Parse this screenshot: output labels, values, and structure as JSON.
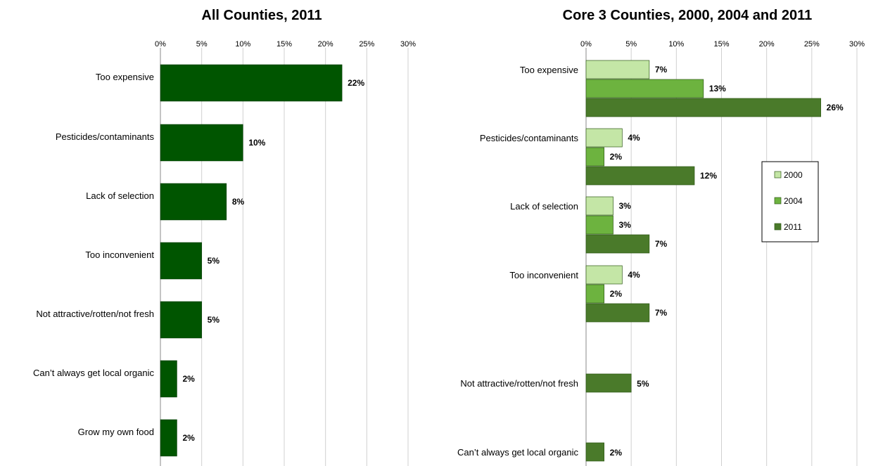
{
  "chart_data": [
    {
      "type": "bar",
      "orientation": "horizontal",
      "title": "All Counties, 2011",
      "xlabel": "",
      "ylabel": "",
      "xlim": [
        0,
        30
      ],
      "ticks": [
        "0%",
        "5%",
        "10%",
        "15%",
        "20%",
        "25%",
        "30%"
      ],
      "grid": true,
      "categories": [
        "Too expensive",
        "Pesticides/contaminants",
        "Lack of selection",
        "Too inconvenient",
        "Not attractive/rotten/not fresh",
        "Can’t always get local organic",
        "Grow my own food"
      ],
      "series": [
        {
          "color": "#005500",
          "values": [
            22,
            10,
            8,
            5,
            5,
            2,
            2
          ],
          "labels": [
            "22%",
            "10%",
            "8%",
            "5%",
            "5%",
            "2%",
            "2%"
          ]
        }
      ]
    },
    {
      "type": "bar",
      "orientation": "horizontal",
      "title": "Core 3 Counties, 2000, 2004 and 2011",
      "xlabel": "",
      "ylabel": "",
      "xlim": [
        0,
        30
      ],
      "ticks": [
        "0%",
        "5%",
        "10%",
        "15%",
        "20%",
        "25%",
        "30%"
      ],
      "grid": true,
      "legend_position": "right",
      "categories": [
        "Too expensive",
        "Pesticides/contaminants",
        "Lack of selection",
        "Too inconvenient",
        "Not attractive/rotten/not fresh",
        "Can’t always get local organic"
      ],
      "series": [
        {
          "name": "2000",
          "color": "#c4e6a6",
          "values": [
            7,
            4,
            3,
            4,
            null,
            null
          ],
          "labels": [
            "7%",
            "4%",
            "3%",
            "4%",
            "",
            ""
          ]
        },
        {
          "name": "2004",
          "color": "#6db33f",
          "values": [
            13,
            2,
            3,
            2,
            null,
            null
          ],
          "labels": [
            "13%",
            "2%",
            "3%",
            "2%",
            "",
            ""
          ]
        },
        {
          "name": "2011",
          "color": "#4a7a2a",
          "values": [
            26,
            12,
            7,
            7,
            5,
            2
          ],
          "labels": [
            "26%",
            "12%",
            "7%",
            "7%",
            "5%",
            "2%"
          ]
        }
      ]
    }
  ]
}
